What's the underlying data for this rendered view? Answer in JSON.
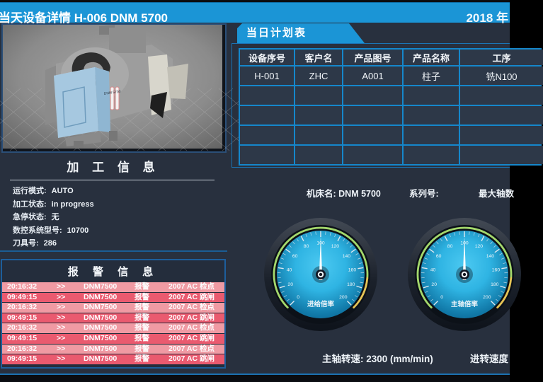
{
  "header": {
    "title": "当天设备详情  H-006   DNM 5700",
    "date": "2018 年"
  },
  "machine_panel": {
    "model_label": "DNM 5700"
  },
  "processing_info": {
    "title": "加 工 信 息",
    "fields": [
      {
        "label": "运行模式:",
        "value": "AUTO"
      },
      {
        "label": "加工状态:",
        "value": "in progress"
      },
      {
        "label": "急停状态:",
        "value": "无"
      },
      {
        "label": "数控系统型号:",
        "value": "10700"
      },
      {
        "label": "刀具号:",
        "value": "286"
      }
    ]
  },
  "alarm_info": {
    "title": "报 警 信 息",
    "rows": [
      {
        "time": "20:16:32",
        "arrow": ">>",
        "device": "DNM7500",
        "type": "报警",
        "message": "2007  AC 检点",
        "severity": "light"
      },
      {
        "time": "09:49:15",
        "arrow": ">>",
        "device": "DNM7500",
        "type": "报警",
        "message": "2007  AC 跳闸",
        "severity": "dark"
      },
      {
        "time": "20:16:32",
        "arrow": ">>",
        "device": "DNM7500",
        "type": "报警",
        "message": "2007  AC 检点",
        "severity": "light"
      },
      {
        "time": "09:49:15",
        "arrow": ">>",
        "device": "DNM7500",
        "type": "报警",
        "message": "2007  AC 跳闸",
        "severity": "dark"
      },
      {
        "time": "20:16:32",
        "arrow": ">>",
        "device": "DNM7500",
        "type": "报警",
        "message": "2007  AC 检点",
        "severity": "light"
      },
      {
        "time": "09:49:15",
        "arrow": ">>",
        "device": "DNM7500",
        "type": "报警",
        "message": "2007  AC 跳闸",
        "severity": "dark"
      },
      {
        "time": "20:16:32",
        "arrow": ">>",
        "device": "DNM7500",
        "type": "报警",
        "message": "2007  AC 检点",
        "severity": "light"
      },
      {
        "time": "09:49:15",
        "arrow": ">>",
        "device": "DNM7500",
        "type": "报警",
        "message": "2007  AC 跳闸",
        "severity": "dark"
      }
    ]
  },
  "plan_table": {
    "tab_title": "当日计划表",
    "columns": [
      "设备序号",
      "客户名",
      "产品图号",
      "产品名称",
      "工序"
    ],
    "rows": [
      [
        "H-001",
        "ZHC",
        "A001",
        "柱子",
        "铣N100"
      ],
      [
        "",
        "",
        "",
        "",
        ""
      ],
      [
        "",
        "",
        "",
        "",
        ""
      ],
      [
        "",
        "",
        "",
        "",
        ""
      ],
      [
        "",
        "",
        "",
        "",
        ""
      ]
    ]
  },
  "machine_meta": {
    "name_label": "机床名:  DNM 5700",
    "serial_label": "系列号:",
    "serial_value": "",
    "axes_label": "最大轴数"
  },
  "gauges": [
    {
      "label": "进给倍率",
      "min": 0,
      "max": 200,
      "value": 100,
      "major_step": 20,
      "minor_step": 5,
      "zones": [
        {
          "to": 170,
          "color": "#a4d86c"
        },
        {
          "to": 200,
          "color": "#e6c455"
        }
      ]
    },
    {
      "label": "主轴倍率",
      "min": 0,
      "max": 200,
      "value": 100,
      "major_step": 20,
      "minor_step": 5,
      "zones": [
        {
          "to": 170,
          "color": "#a4d86c"
        },
        {
          "to": 200,
          "color": "#e6c455"
        }
      ]
    }
  ],
  "footer": {
    "spindle_text": "主轴转速:  2300  (mm/min)",
    "feed_label": "进转速度"
  },
  "colors": {
    "accent_blue": "#1b95d6",
    "background": "#28303e",
    "table_border": "#1587cb",
    "alarm_light": "#f09aa3",
    "alarm_dark": "#ea5a6f",
    "gauge_arc_main": "#a4d86c",
    "gauge_arc_end": "#e6c455"
  }
}
